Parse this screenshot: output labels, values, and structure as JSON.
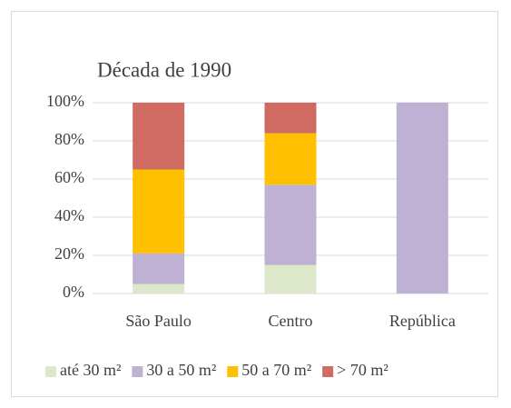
{
  "chart_data": {
    "type": "stacked_bar",
    "title": "Década de 1990",
    "categories": [
      "São Paulo",
      "Centro",
      "República"
    ],
    "series": [
      {
        "name": "até 30 m²",
        "color": "#dde8cb",
        "values": [
          5,
          15,
          0
        ]
      },
      {
        "name": "30 a 50 m²",
        "color": "#bfb1d4",
        "values": [
          16,
          42,
          100
        ]
      },
      {
        "name": "50 a 70 m²",
        "color": "#ffc000",
        "values": [
          44,
          27,
          0
        ]
      },
      {
        "name": "> 70 m²",
        "color": "#d06b63",
        "values": [
          35,
          16,
          0
        ]
      }
    ],
    "ylim": [
      0,
      100
    ],
    "yticks": [
      {
        "value": 0,
        "label": "0%"
      },
      {
        "value": 20,
        "label": "20%"
      },
      {
        "value": 40,
        "label": "40%"
      },
      {
        "value": 60,
        "label": "60%"
      },
      {
        "value": 80,
        "label": "80%"
      },
      {
        "value": 100,
        "label": "100%"
      }
    ],
    "grid": true,
    "legend": "bottom"
  }
}
